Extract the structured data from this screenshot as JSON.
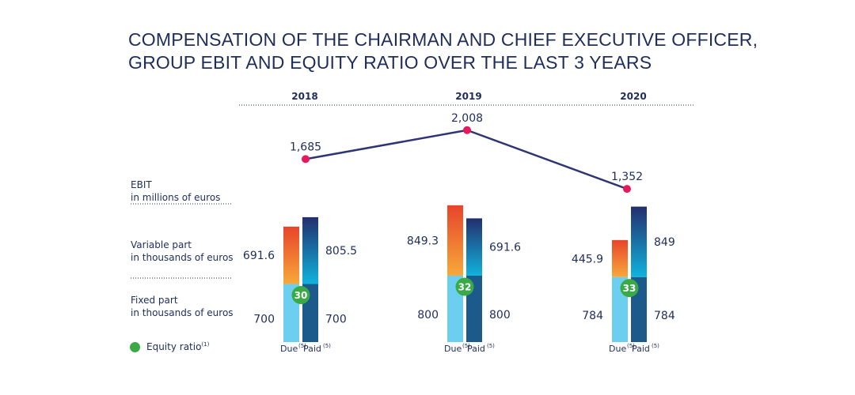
{
  "title": {
    "line1": "COMPENSATION OF THE CHAIRMAN AND CHIEF EXECUTIVE OFFICER,",
    "line2": "GROUP EBIT AND EQUITY RATIO OVER THE LAST 3 YEARS"
  },
  "row_labels": {
    "ebit_line1": "EBIT",
    "ebit_line2": "in millions of euros",
    "variable_line1": "Variable part",
    "variable_line2": "in thousands of euros",
    "fixed_line1": "Fixed part",
    "fixed_line2": "in thousands of euros"
  },
  "legend": {
    "equity_ratio": "Equity ratio",
    "equity_ratio_note": "(1)"
  },
  "bar_labels": {
    "due": "Due",
    "paid": "Paid",
    "note": "(5)"
  },
  "colors": {
    "text": "#1f2d5a",
    "line": "#2e3575",
    "ebit_point": "#e5195e",
    "due_fixed": "#6dcff0",
    "due_variable_top": "#e8442a",
    "due_variable_bottom": "#f7a93b",
    "paid_fixed": "#1c5a8c",
    "paid_variable_top": "#232f6e",
    "paid_variable_bottom": "#10b3dd",
    "equity_badge": "#3aaa47"
  },
  "chart_data": {
    "type": "bar",
    "categories": [
      "2018",
      "2019",
      "2020"
    ],
    "ebit": {
      "values": [
        1685,
        2008,
        1352
      ],
      "labels": [
        "1,685",
        "2,008",
        "1,352"
      ]
    },
    "due": {
      "fixed": [
        700,
        800,
        784
      ],
      "variable": [
        691.6,
        849.3,
        445.9
      ],
      "fixed_labels": [
        "700",
        "800",
        "784"
      ],
      "variable_labels": [
        "691.6",
        "849.3",
        "445.9"
      ]
    },
    "paid": {
      "fixed": [
        700,
        800,
        784
      ],
      "variable": [
        805.5,
        691.6,
        849
      ],
      "fixed_labels": [
        "700",
        "800",
        "784"
      ],
      "variable_labels": [
        "805.5",
        "691.6",
        "849"
      ]
    },
    "equity_ratio": [
      30,
      32,
      33
    ],
    "equity_ratio_labels": [
      "30",
      "32",
      "33"
    ]
  }
}
